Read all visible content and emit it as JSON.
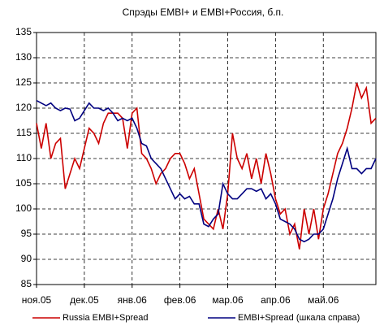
{
  "chart_data": {
    "type": "line",
    "title": "Спрэды EMBI+ и EMBI+Россия, б.п.",
    "x": [
      0,
      1,
      2,
      3,
      4,
      5,
      6,
      7,
      8,
      9,
      10,
      11,
      12,
      13,
      14,
      15,
      16,
      17,
      18,
      19,
      20,
      21,
      22,
      23,
      24,
      25,
      26,
      27,
      28,
      29,
      30,
      31,
      32,
      33,
      34,
      35,
      36,
      37,
      38,
      39,
      40,
      41,
      42,
      43,
      44,
      45,
      46,
      47,
      48,
      49,
      50,
      51,
      52,
      53,
      54,
      55,
      56,
      57,
      58,
      59,
      60,
      61,
      62,
      63,
      64,
      65,
      66,
      67,
      68,
      69,
      70,
      71
    ],
    "xlim": [
      0,
      71
    ],
    "xticks": [
      {
        "value": 0,
        "label": "ноя.05"
      },
      {
        "value": 10,
        "label": "дек.05"
      },
      {
        "value": 20,
        "label": "янв.06"
      },
      {
        "value": 30,
        "label": "фев.06"
      },
      {
        "value": 40,
        "label": "мар.06"
      },
      {
        "value": 50,
        "label": "апр.06"
      },
      {
        "value": 60,
        "label": "май.06"
      }
    ],
    "ylim": [
      85,
      135
    ],
    "yticks": [
      85,
      90,
      95,
      100,
      105,
      110,
      115,
      120,
      125,
      130,
      135
    ],
    "grid": true,
    "series": [
      {
        "name": "Russia EMBI+Spread",
        "color": "#cc0000",
        "values": [
          117,
          112,
          117,
          110,
          113,
          114,
          104,
          107,
          110,
          108,
          112,
          116,
          115,
          113,
          117,
          119,
          119,
          119,
          118,
          112,
          119,
          120,
          111,
          110,
          108,
          105,
          107,
          108,
          110,
          111,
          111,
          109,
          106,
          108,
          103,
          98,
          97,
          96,
          100,
          96,
          103,
          115,
          110,
          108,
          111,
          106,
          110,
          105,
          111,
          107,
          102,
          99,
          100,
          95,
          97,
          92,
          100,
          95,
          100,
          94,
          100,
          103,
          107,
          111,
          113,
          116,
          120,
          125,
          122,
          124,
          117,
          118
        ]
      },
      {
        "name": "EMBI+Spread (шкала справа)",
        "color": "#000080",
        "values": [
          121.5,
          121,
          120.5,
          121,
          120,
          119.5,
          120,
          119.8,
          117.5,
          118,
          119.5,
          121,
          120,
          120,
          119.5,
          120,
          119,
          117.5,
          118,
          117.5,
          118,
          116,
          113,
          112.5,
          110,
          109,
          108,
          106,
          104,
          102,
          103,
          102,
          102.5,
          101,
          101,
          97,
          96.5,
          98,
          99,
          105,
          103,
          102,
          102,
          103,
          104,
          104,
          103.5,
          104,
          102,
          103,
          101,
          98,
          97.5,
          97,
          96,
          94,
          93.5,
          94,
          95,
          95,
          96,
          99,
          102,
          106,
          109,
          112,
          108,
          108,
          107,
          108,
          108,
          110
        ]
      }
    ],
    "legend": "bottom"
  }
}
